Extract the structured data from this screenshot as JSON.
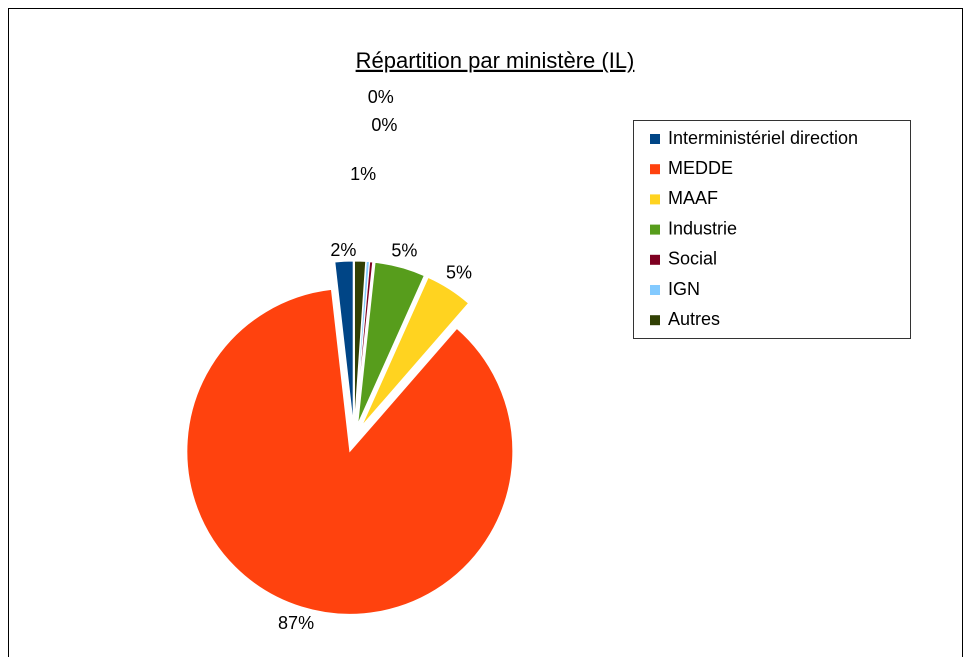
{
  "chart_data": {
    "type": "pie",
    "title": "Répartition par ministère (IL)",
    "categories": [
      "Interministériel direction",
      "MEDDE",
      "MAAF",
      "Industrie",
      "Social",
      "IGN",
      "Autres"
    ],
    "values": [
      1.8,
      86.8,
      4.7,
      5.0,
      0.3,
      0.3,
      1.1
    ],
    "value_labels": [
      "2%",
      "87%",
      "5%",
      "5%",
      "0%",
      "0%",
      "1%"
    ],
    "colors": [
      "#004586",
      "#ff420e",
      "#ffd320",
      "#579d1c",
      "#7e0021",
      "#83caff",
      "#314004"
    ],
    "direction": "counterclockwise",
    "legend": "right"
  }
}
